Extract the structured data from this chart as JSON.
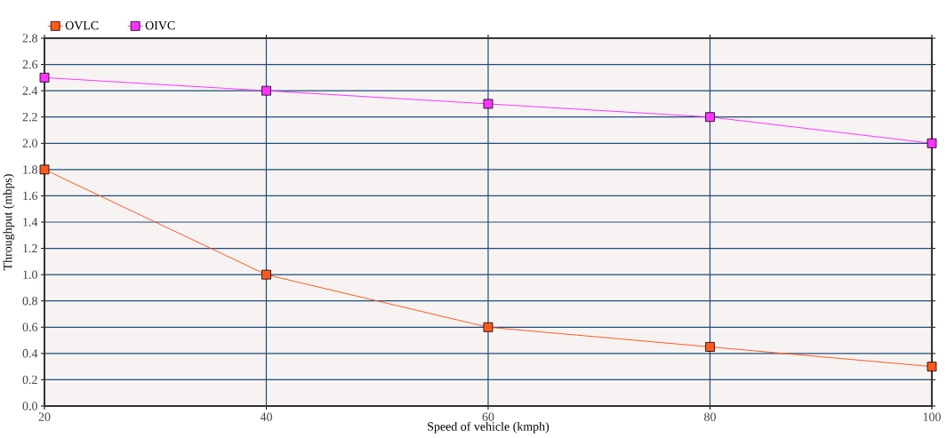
{
  "chart_data": {
    "type": "line",
    "xlabel": "Speed of vehicle (kmph)",
    "ylabel": "Throughput (mbps)",
    "x": [
      20,
      40,
      60,
      80,
      100
    ],
    "series": [
      {
        "name": "OVLC",
        "color": "#ff5a1e",
        "values": [
          1.8,
          1.0,
          0.6,
          0.45,
          0.3
        ]
      },
      {
        "name": "OIVC",
        "color": "#ff33ff",
        "values": [
          2.5,
          2.4,
          2.3,
          2.2,
          2.0
        ]
      }
    ],
    "xlim": [
      20,
      100
    ],
    "ylim": [
      0,
      2.8
    ],
    "xticks": [
      20,
      40,
      60,
      80,
      100
    ],
    "yticks": [
      {
        "value": 0,
        "label": "0.0"
      },
      {
        "value": 0.2,
        "label": "0.2"
      },
      {
        "value": 0.4,
        "label": "0.4"
      },
      {
        "value": 0.6,
        "label": "0.6"
      },
      {
        "value": 0.8,
        "label": "0.8"
      },
      {
        "value": 1.0,
        "label": "1.0"
      },
      {
        "value": 1.2,
        "label": "1.2"
      },
      {
        "value": 1.4,
        "label": "1.4"
      },
      {
        "value": 1.6,
        "label": "1.6"
      },
      {
        "value": 1.8,
        "label": "1.8"
      },
      {
        "value": 2.0,
        "label": "2.0"
      },
      {
        "value": 2.2,
        "label": "2.2"
      },
      {
        "value": 2.4,
        "label": "2.4"
      },
      {
        "value": 2.6,
        "label": "2.6"
      },
      {
        "value": 2.8,
        "label": "2.8"
      }
    ],
    "grid": true,
    "legend": "top left",
    "marker": "square",
    "line_style": "solid"
  }
}
